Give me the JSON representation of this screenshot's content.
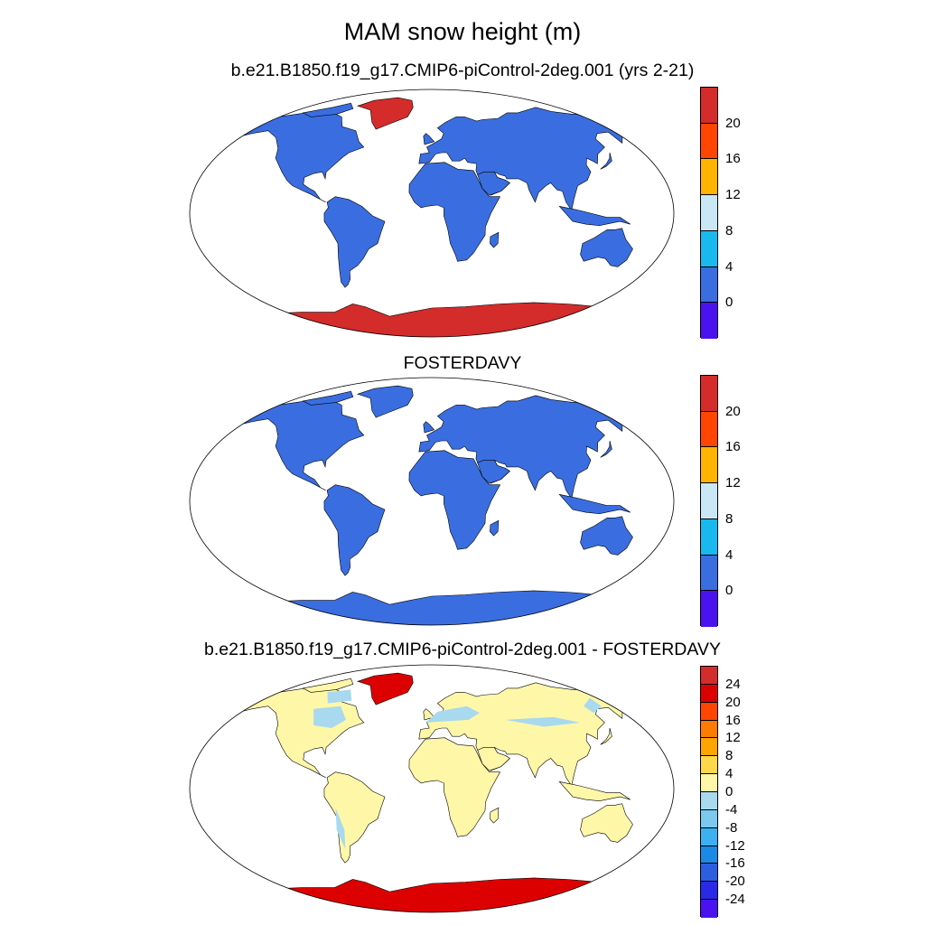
{
  "title": "MAM snow height (m)",
  "panels": [
    {
      "title": "b.e21.B1850.f19_g17.CMIP6-piControl-2deg.001 (yrs 2-21)",
      "land_fill": "#3a6ee0",
      "antarctica_fill": "#d42b2b",
      "greenland_fill": "#d42b2b",
      "colorbar": {
        "labels": [
          "20",
          "16",
          "12",
          "8",
          "4",
          "0"
        ],
        "colors": [
          "#d42b2b",
          "#ff4500",
          "#ffb400",
          "#c9e7f5",
          "#19b9f0",
          "#3a6ee0",
          "#4b12f0"
        ]
      }
    },
    {
      "title": "FOSTERDAVY",
      "land_fill": "#3a6ee0",
      "antarctica_fill": "#3a6ee0",
      "greenland_fill": "#3a6ee0",
      "colorbar": {
        "labels": [
          "20",
          "16",
          "12",
          "8",
          "4",
          "0"
        ],
        "colors": [
          "#d42b2b",
          "#ff4500",
          "#ffb400",
          "#c9e7f5",
          "#19b9f0",
          "#3a6ee0",
          "#4b12f0"
        ]
      }
    },
    {
      "title": "b.e21.B1850.f19_g17.CMIP6-piControl-2deg.001 - FOSTERDAVY",
      "land_fill": "#fff7a8",
      "antarctica_fill": "#dd0000",
      "greenland_fill": "#dd0000",
      "highlight_fill": "#a8d9ef",
      "colorbar": {
        "labels": [
          "24",
          "20",
          "16",
          "12",
          "8",
          "4",
          "0",
          "-4",
          "-8",
          "-12",
          "-16",
          "-20",
          "-24"
        ],
        "colors": [
          "#d42b2b",
          "#dd0000",
          "#ff4500",
          "#ff7c00",
          "#ffa500",
          "#ffd84a",
          "#fff7a8",
          "#a8d9ef",
          "#7cc8ef",
          "#3cb0f0",
          "#1a8ae6",
          "#2c5ee0",
          "#2a2ae6",
          "#4b12f0"
        ]
      }
    }
  ]
}
